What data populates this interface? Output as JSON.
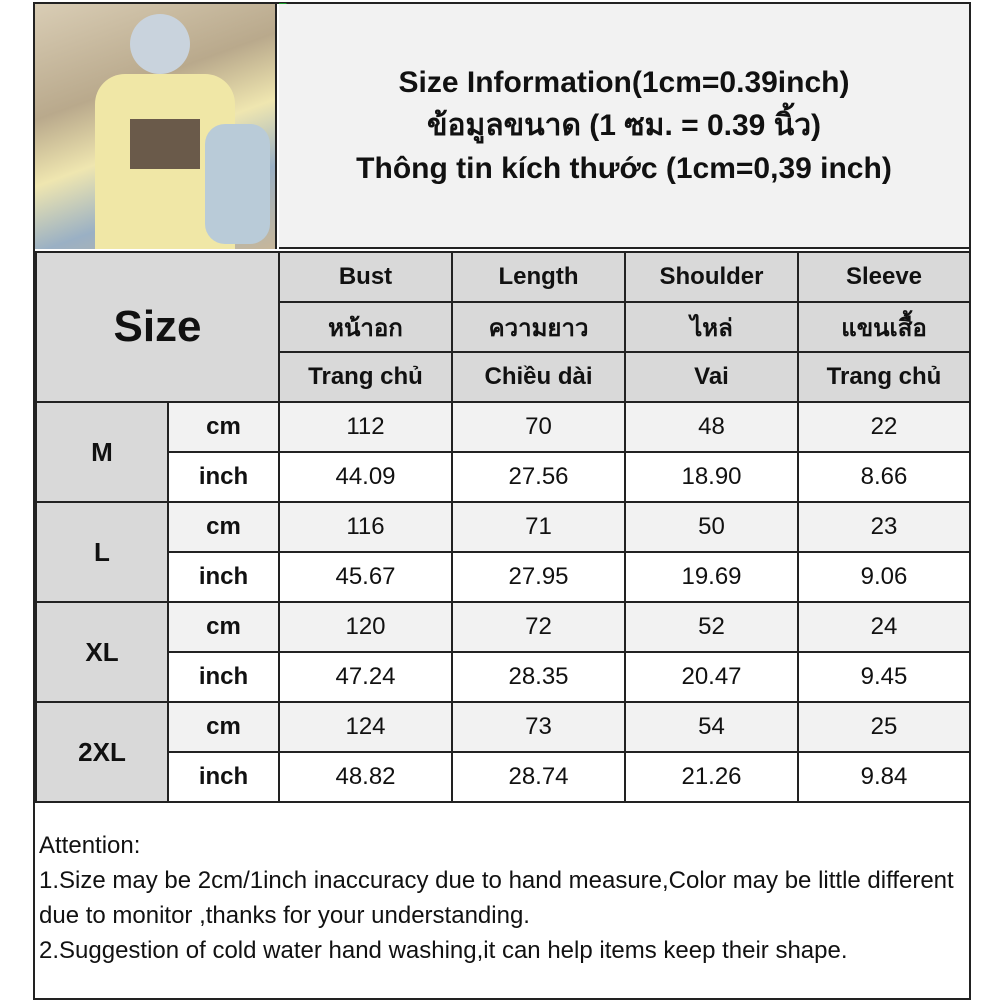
{
  "title_lines": [
    "Size Information(1cm=0.39inch)",
    "ข้อมูลขนาด (1 ซม. = 0.39 นิ้ว)",
    "Thông tin kích thước (1cm=0,39 inch)"
  ],
  "size_label": "Size",
  "columns": [
    {
      "en": "Bust",
      "th": "หน้าอก",
      "vi": "Trang chủ"
    },
    {
      "en": "Length",
      "th": "ความยาว",
      "vi": "Chiều dài"
    },
    {
      "en": "Shoulder",
      "th": "ไหล่",
      "vi": "Vai"
    },
    {
      "en": "Sleeve",
      "th": "แขนเสื้อ",
      "vi": "Trang chủ"
    }
  ],
  "rows": [
    {
      "size": "M",
      "cm_label": "cm",
      "inch_label": "inch",
      "cm": [
        "112",
        "70",
        "48",
        "22"
      ],
      "inch": [
        "44.09",
        "27.56",
        "18.90",
        "8.66"
      ]
    },
    {
      "size": "L",
      "cm_label": "cm",
      "inch_label": "inch",
      "cm": [
        "116",
        "71",
        "50",
        "23"
      ],
      "inch": [
        "45.67",
        "27.95",
        "19.69",
        "9.06"
      ]
    },
    {
      "size": "XL",
      "cm_label": "cm",
      "inch_label": "inch",
      "cm": [
        "120",
        "72",
        "52",
        "24"
      ],
      "inch": [
        "47.24",
        "28.35",
        "20.47",
        "9.45"
      ]
    },
    {
      "size": "2XL",
      "cm_label": "cm",
      "inch_label": "inch",
      "cm": [
        "124",
        "73",
        "54",
        "25"
      ],
      "inch": [
        "48.82",
        "28.74",
        "21.26",
        "9.84"
      ]
    }
  ],
  "notes": {
    "heading": "Attention:",
    "line1": "1.Size may be 2cm/1inch inaccuracy due to hand measure,Color may be little different due to monitor ,thanks for your understanding.",
    "line2": "2.Suggestion of cold water hand washing,it can help items keep their shape."
  }
}
